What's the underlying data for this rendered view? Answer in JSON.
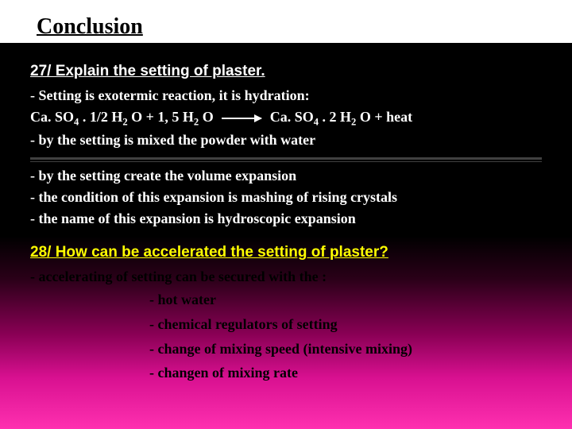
{
  "title": "Conclusion",
  "q27": {
    "heading": "27/  Explain the setting of plaster.",
    "l1": " - Setting is exotermic reaction, it is hydration:",
    "eq_left_a": "Ca. SO",
    "eq_left_b": " . 1/2 H",
    "eq_left_c": " O + 1, 5 H",
    "eq_left_d": " O",
    "eq_right_a": "Ca. SO",
    "eq_right_b": " . 2 H",
    "eq_right_c": " O + heat",
    "l3": "- by the setting is mixed the powder with water",
    "l4": "- by the setting  create the volume expansion",
    "l5": "- the condition of this expansion is mashing of rising crystals",
    "l6": "- the name of this expansion is hydroscopic expansion"
  },
  "q28": {
    "heading": "28/  How can be accelerated the setting of plaster?",
    "l1": "- accelerating of setting can be secured  with the :",
    "b1": "- hot water",
    "b2": "- chemical regulators of setting",
    "b3": "- change of mixing speed (intensive mixing)",
    "b4": "- changen of mixing rate"
  }
}
